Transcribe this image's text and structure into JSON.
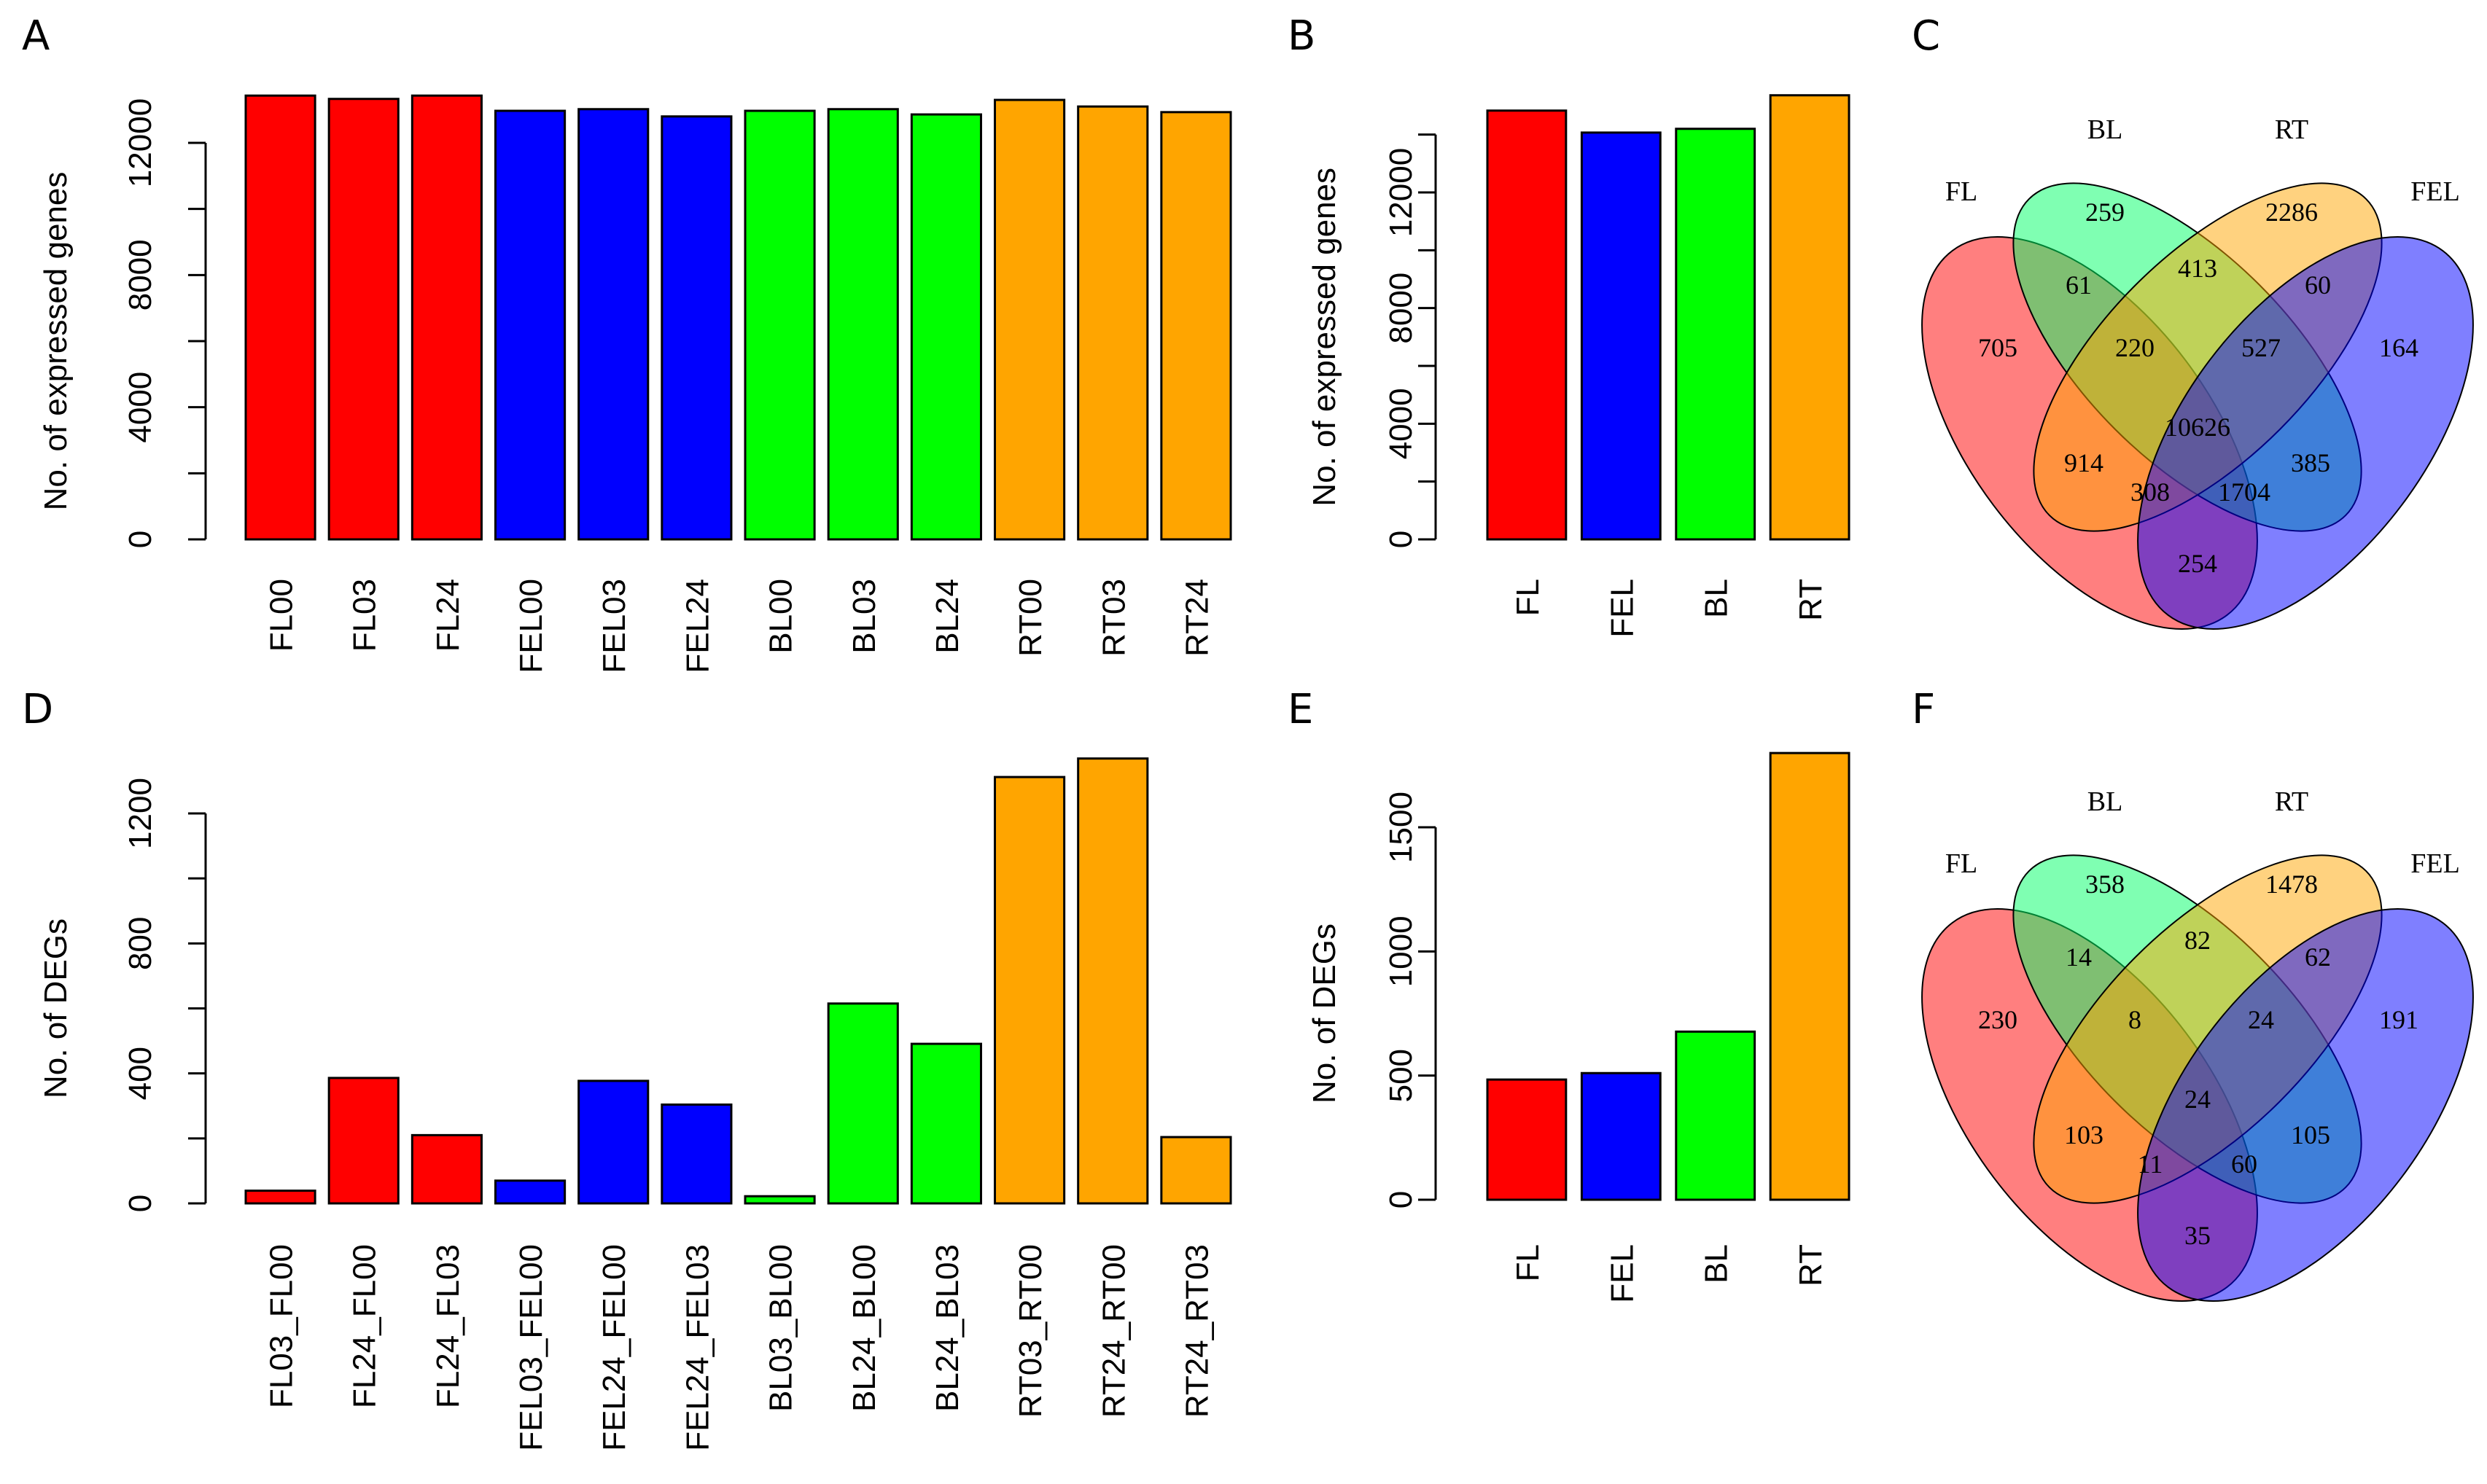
{
  "chart_data": [
    {
      "panel": "A",
      "type": "bar",
      "title": "",
      "xlabel": "",
      "ylabel": "No. of expressed genes",
      "ylim": [
        0,
        14000
      ],
      "ytick_labels": [
        "0",
        "4000",
        "8000",
        "12000"
      ],
      "ytick_values": [
        0,
        4000,
        8000,
        12000
      ],
      "categories": [
        "FL00",
        "FL03",
        "FL24",
        "FEL00",
        "FEL03",
        "FEL24",
        "BL00",
        "BL03",
        "BL24",
        "RT00",
        "RT03",
        "RT24"
      ],
      "values": [
        13430,
        13330,
        13430,
        12970,
        13020,
        12800,
        12970,
        13020,
        12860,
        13300,
        13100,
        12930
      ],
      "colors": [
        "#ff0000",
        "#ff0000",
        "#ff0000",
        "#0000ff",
        "#0000ff",
        "#0000ff",
        "#00ff00",
        "#00ff00",
        "#00ff00",
        "#ffa500",
        "#ffa500",
        "#ffa500"
      ]
    },
    {
      "panel": "B",
      "type": "bar",
      "title": "",
      "xlabel": "",
      "ylabel": "No. of expressed genes",
      "ylim": [
        0,
        15500
      ],
      "ytick_labels": [
        "0",
        "4000",
        "8000",
        "12000"
      ],
      "ytick_values": [
        0,
        4000,
        8000,
        12000
      ],
      "categories": [
        "FL",
        "FEL",
        "BL",
        "RT"
      ],
      "values": [
        14830,
        14070,
        14200,
        15360
      ],
      "colors": [
        "#ff0000",
        "#0000ff",
        "#00ff00",
        "#ffa500"
      ]
    },
    {
      "panel": "C",
      "type": "venn",
      "sets": [
        "FL",
        "BL",
        "RT",
        "FEL"
      ],
      "set_colors": [
        "#ff0000",
        "#00ff66",
        "#ffa500",
        "#0000ff"
      ],
      "regions": {
        "BL": "259",
        "RT": "2286",
        "FL_BL": "61",
        "BL_RT": "413",
        "RT_FEL": "60",
        "FL": "705",
        "FL_BL_RT": "220",
        "BL_RT_FEL": "527",
        "FEL": "164",
        "ALL": "10626",
        "FL_RT": "914",
        "BL_FEL": "385",
        "FL_RT_FEL": "308",
        "FL_BL_FEL": "1704",
        "FL_FEL": "254"
      }
    },
    {
      "panel": "D",
      "type": "bar",
      "title": "",
      "xlabel": "",
      "ylabel": "No. of DEGs",
      "ylim": [
        0,
        1400
      ],
      "ytick_labels": [
        "0",
        "400",
        "800",
        "1200"
      ],
      "ytick_values": [
        0,
        400,
        800,
        1200
      ],
      "categories": [
        "FL03_FL00",
        "FL24_FL00",
        "FL24_FL03",
        "FEL03_FEL00",
        "FEL24_FEL00",
        "FEL24_FEL03",
        "BL03_BL00",
        "BL24_BL00",
        "BL24_BL03",
        "RT03_RT00",
        "RT24_RT00",
        "RT24_RT03"
      ],
      "values": [
        39,
        386,
        210,
        70,
        377,
        304,
        22,
        615,
        491,
        1312,
        1369,
        204
      ],
      "colors": [
        "#ff0000",
        "#ff0000",
        "#ff0000",
        "#0000ff",
        "#0000ff",
        "#0000ff",
        "#00ff00",
        "#00ff00",
        "#00ff00",
        "#ffa500",
        "#ffa500",
        "#ffa500"
      ]
    },
    {
      "panel": "E",
      "type": "bar",
      "title": "",
      "xlabel": "",
      "ylabel": "No. of DEGs",
      "ylim": [
        0,
        1800
      ],
      "ytick_labels": [
        "0",
        "500",
        "1000",
        "1500"
      ],
      "ytick_values": [
        0,
        500,
        1000,
        1500
      ],
      "categories": [
        "FL",
        "FEL",
        "BL",
        "RT"
      ],
      "values": [
        484,
        510,
        677,
        1799
      ],
      "colors": [
        "#ff0000",
        "#0000ff",
        "#00ff00",
        "#ffa500"
      ]
    },
    {
      "panel": "F",
      "type": "venn",
      "sets": [
        "FL",
        "BL",
        "RT",
        "FEL"
      ],
      "set_colors": [
        "#ff0000",
        "#00ff66",
        "#ffa500",
        "#0000ff"
      ],
      "regions": {
        "BL": "358",
        "RT": "1478",
        "FL_BL": "14",
        "BL_RT": "82",
        "RT_FEL": "62",
        "FL": "230",
        "FL_BL_RT": "8",
        "BL_RT_FEL": "24",
        "FEL": "191",
        "ALL": "24",
        "FL_RT": "103",
        "BL_FEL": "105",
        "FL_RT_FEL": "11",
        "FL_BL_FEL": "60",
        "FL_FEL": "35"
      }
    }
  ]
}
